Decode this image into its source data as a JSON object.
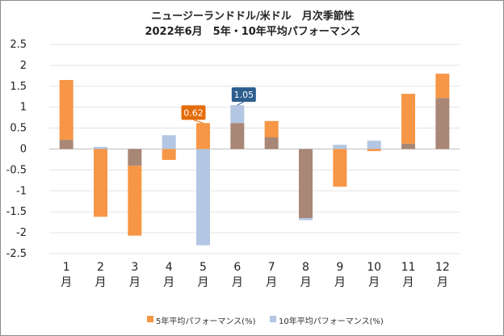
{
  "chart_data": {
    "type": "bar",
    "title_line1": "ニュージーランドドル/米ドル　月次季節性",
    "title_line2": "2022年6月　5年・10年平均パフォーマンス",
    "categories": [
      {
        "num": "1",
        "unit": "月"
      },
      {
        "num": "2",
        "unit": "月"
      },
      {
        "num": "3",
        "unit": "月"
      },
      {
        "num": "4",
        "unit": "月"
      },
      {
        "num": "5",
        "unit": "月"
      },
      {
        "num": "6",
        "unit": "月"
      },
      {
        "num": "7",
        "unit": "月"
      },
      {
        "num": "8",
        "unit": "月"
      },
      {
        "num": "9",
        "unit": "月"
      },
      {
        "num": "10",
        "unit": "月"
      },
      {
        "num": "11",
        "unit": "月"
      },
      {
        "num": "12",
        "unit": "月"
      }
    ],
    "series": [
      {
        "name": "5年平均パフォーマンス(%)",
        "color": "#f79646",
        "values": [
          1.65,
          -1.62,
          -2.07,
          -0.26,
          0.62,
          0.62,
          0.67,
          -1.65,
          -0.9,
          -0.05,
          1.32,
          1.8
        ]
      },
      {
        "name": "10年平均パフォーマンス(%)",
        "color": "#b3c6e2",
        "values": [
          0.22,
          0.05,
          -0.4,
          0.33,
          -2.3,
          1.05,
          0.28,
          -1.7,
          0.1,
          0.2,
          0.13,
          1.22
        ]
      }
    ],
    "overlap_color": "#a98776",
    "ylim": [
      -2.5,
      2.5
    ],
    "yticks": [
      "2.5",
      "2",
      "1.5",
      "1",
      "0.5",
      "0",
      "-0.5",
      "-1",
      "-1.5",
      "-2",
      "-2.5"
    ],
    "annotations": [
      {
        "label": "0.62",
        "series": 0,
        "index": 4,
        "color": "#e46c0a"
      },
      {
        "label": "1.05",
        "series": 1,
        "index": 5,
        "color": "#2e5d8f"
      }
    ],
    "legend_position": "bottom"
  }
}
